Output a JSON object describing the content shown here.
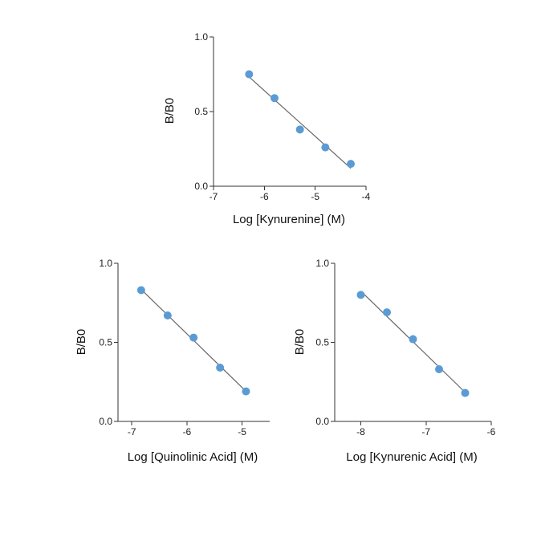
{
  "chart_data": [
    {
      "type": "scatter",
      "title": "",
      "xlabel": "Log [Kynurenine] (M)",
      "ylabel": "B/B0",
      "xlim": [
        -7,
        -4
      ],
      "ylim": [
        0,
        1
      ],
      "xticks": [
        "-7",
        "-6",
        "-5",
        "-4"
      ],
      "yticks": [
        "0.0",
        "0.5",
        "1.0"
      ],
      "grid": false,
      "point_color": "#5b9bd5",
      "fit_line": true,
      "series": [
        {
          "x": [
            -6.3,
            -5.8,
            -5.3,
            -4.8,
            -4.3
          ],
          "y": [
            0.75,
            0.59,
            0.38,
            0.26,
            0.15
          ]
        }
      ]
    },
    {
      "type": "scatter",
      "title": "",
      "xlabel": "Log [Quinolinic Acid] (M)",
      "ylabel": "B/B0",
      "xlim": [
        -7.25,
        -4.5
      ],
      "ylim": [
        0,
        1
      ],
      "xticks": [
        "-7",
        "-6",
        "-5"
      ],
      "yticks": [
        "0.0",
        "0.5",
        "1.0"
      ],
      "grid": false,
      "point_color": "#5b9bd5",
      "fit_line": true,
      "series": [
        {
          "x": [
            -6.83,
            -6.35,
            -5.88,
            -5.4,
            -4.93
          ],
          "y": [
            0.83,
            0.67,
            0.53,
            0.34,
            0.19
          ]
        }
      ]
    },
    {
      "type": "scatter",
      "title": "",
      "xlabel": "Log [Kynurenic Acid] (M)",
      "ylabel": "B/B0",
      "xlim": [
        -8.4,
        -6
      ],
      "ylim": [
        0,
        1
      ],
      "xticks": [
        "-8",
        "-7",
        "-6"
      ],
      "yticks": [
        "0.0",
        "0.5",
        "1.0"
      ],
      "grid": false,
      "point_color": "#5b9bd5",
      "fit_line": true,
      "series": [
        {
          "x": [
            -8.0,
            -7.6,
            -7.2,
            -6.8,
            -6.4
          ],
          "y": [
            0.8,
            0.69,
            0.52,
            0.33,
            0.18
          ]
        }
      ]
    }
  ]
}
